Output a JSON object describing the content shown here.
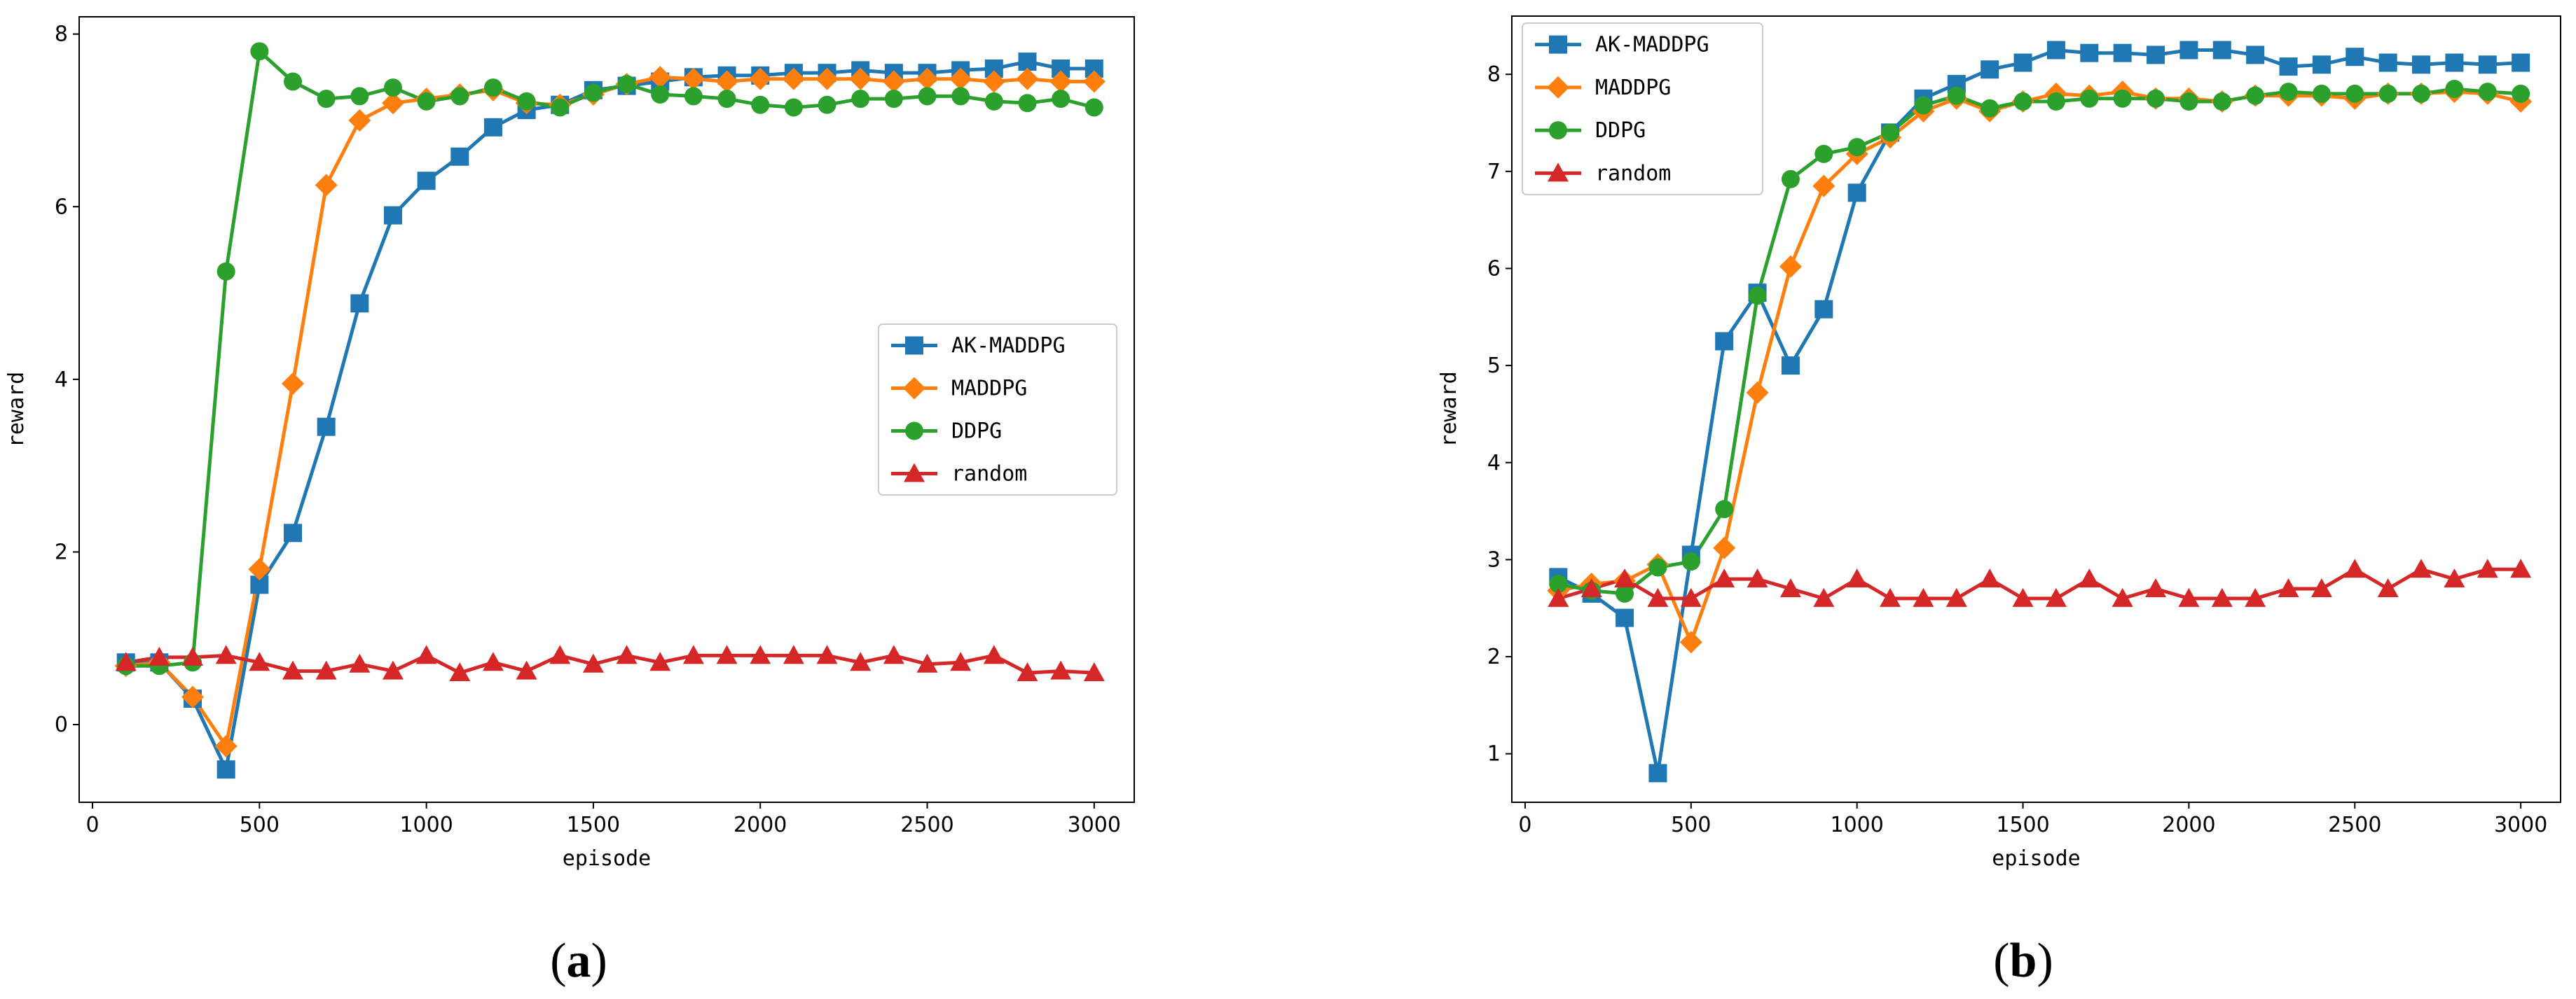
{
  "chart_data": [
    {
      "type": "line",
      "panel_label": "(a)",
      "panel_letter": "a",
      "xlabel": "episode",
      "ylabel": "reward",
      "xlim": [
        -40,
        3120
      ],
      "ylim": [
        -0.9,
        8.2
      ],
      "xticks": [
        0,
        500,
        1000,
        1500,
        2000,
        2500,
        3000
      ],
      "yticks": [
        0,
        2,
        4,
        6,
        8
      ],
      "legend_position": "center-right",
      "x": [
        100,
        200,
        300,
        400,
        500,
        600,
        700,
        800,
        900,
        1000,
        1100,
        1200,
        1300,
        1400,
        1500,
        1600,
        1700,
        1800,
        1900,
        2000,
        2100,
        2200,
        2300,
        2400,
        2500,
        2600,
        2700,
        2800,
        2900,
        3000
      ],
      "series": [
        {
          "name": "AK-MADDPG",
          "color": "#1f77b4",
          "marker": "square",
          "values": [
            0.72,
            0.72,
            0.3,
            -0.52,
            1.62,
            2.22,
            3.45,
            4.88,
            5.9,
            6.3,
            6.58,
            6.92,
            7.12,
            7.18,
            7.35,
            7.4,
            7.45,
            7.5,
            7.52,
            7.52,
            7.55,
            7.55,
            7.58,
            7.55,
            7.55,
            7.58,
            7.6,
            7.68,
            7.6,
            7.6
          ]
        },
        {
          "name": "MADDPG",
          "color": "#ff7f0e",
          "marker": "diamond",
          "values": [
            0.68,
            0.72,
            0.32,
            -0.25,
            1.8,
            3.95,
            6.25,
            7.0,
            7.2,
            7.25,
            7.3,
            7.35,
            7.2,
            7.18,
            7.3,
            7.42,
            7.5,
            7.48,
            7.45,
            7.48,
            7.48,
            7.48,
            7.48,
            7.45,
            7.48,
            7.48,
            7.45,
            7.48,
            7.45,
            7.45
          ]
        },
        {
          "name": "DDPG",
          "color": "#2ca02c",
          "marker": "circle",
          "values": [
            0.68,
            0.68,
            0.72,
            5.25,
            7.8,
            7.45,
            7.25,
            7.28,
            7.38,
            7.22,
            7.28,
            7.38,
            7.22,
            7.15,
            7.32,
            7.42,
            7.3,
            7.28,
            7.25,
            7.18,
            7.15,
            7.18,
            7.25,
            7.25,
            7.28,
            7.28,
            7.22,
            7.2,
            7.25,
            7.15
          ]
        },
        {
          "name": "random",
          "color": "#d62728",
          "marker": "triangle",
          "values": [
            0.72,
            0.78,
            0.78,
            0.8,
            0.72,
            0.62,
            0.62,
            0.7,
            0.62,
            0.8,
            0.6,
            0.72,
            0.62,
            0.8,
            0.7,
            0.8,
            0.72,
            0.8,
            0.8,
            0.8,
            0.8,
            0.8,
            0.72,
            0.8,
            0.7,
            0.72,
            0.8,
            0.6,
            0.62,
            0.6
          ]
        }
      ]
    },
    {
      "type": "line",
      "panel_label": "(b)",
      "panel_letter": "b",
      "xlabel": "episode",
      "ylabel": "reward",
      "xlim": [
        -40,
        3120
      ],
      "ylim": [
        0.5,
        8.6
      ],
      "xticks": [
        0,
        500,
        1000,
        1500,
        2000,
        2500,
        3000
      ],
      "yticks": [
        1,
        2,
        3,
        4,
        5,
        6,
        7,
        8
      ],
      "legend_position": "upper-left",
      "x": [
        100,
        200,
        300,
        400,
        500,
        600,
        700,
        800,
        900,
        1000,
        1100,
        1200,
        1300,
        1400,
        1500,
        1600,
        1700,
        1800,
        1900,
        2000,
        2100,
        2200,
        2300,
        2400,
        2500,
        2600,
        2700,
        2800,
        2900,
        3000
      ],
      "series": [
        {
          "name": "AK-MADDPG",
          "color": "#1f77b4",
          "marker": "square",
          "values": [
            2.82,
            2.65,
            2.4,
            0.8,
            3.05,
            5.25,
            5.75,
            5.0,
            5.58,
            6.78,
            7.4,
            7.75,
            7.9,
            8.05,
            8.12,
            8.25,
            8.22,
            8.22,
            8.2,
            8.25,
            8.25,
            8.2,
            8.08,
            8.1,
            8.18,
            8.12,
            8.1,
            8.12,
            8.1,
            8.12
          ]
        },
        {
          "name": "MADDPG",
          "color": "#ff7f0e",
          "marker": "diamond",
          "values": [
            2.68,
            2.75,
            2.78,
            2.95,
            2.15,
            3.12,
            4.72,
            6.02,
            6.85,
            7.18,
            7.35,
            7.62,
            7.75,
            7.62,
            7.72,
            7.8,
            7.78,
            7.82,
            7.75,
            7.75,
            7.72,
            7.78,
            7.78,
            7.78,
            7.75,
            7.8,
            7.8,
            7.82,
            7.8,
            7.72
          ]
        },
        {
          "name": "DDPG",
          "color": "#2ca02c",
          "marker": "circle",
          "values": [
            2.75,
            2.68,
            2.65,
            2.92,
            2.98,
            3.52,
            5.72,
            6.92,
            7.18,
            7.25,
            7.4,
            7.68,
            7.78,
            7.65,
            7.72,
            7.72,
            7.75,
            7.75,
            7.75,
            7.72,
            7.72,
            7.78,
            7.82,
            7.8,
            7.8,
            7.8,
            7.8,
            7.85,
            7.82,
            7.8
          ]
        },
        {
          "name": "random",
          "color": "#d62728",
          "marker": "triangle",
          "values": [
            2.6,
            2.7,
            2.8,
            2.6,
            2.6,
            2.8,
            2.8,
            2.7,
            2.6,
            2.8,
            2.6,
            2.6,
            2.6,
            2.8,
            2.6,
            2.6,
            2.8,
            2.6,
            2.7,
            2.6,
            2.6,
            2.6,
            2.7,
            2.7,
            2.9,
            2.7,
            2.9,
            2.8,
            2.9,
            2.9
          ]
        }
      ]
    }
  ]
}
